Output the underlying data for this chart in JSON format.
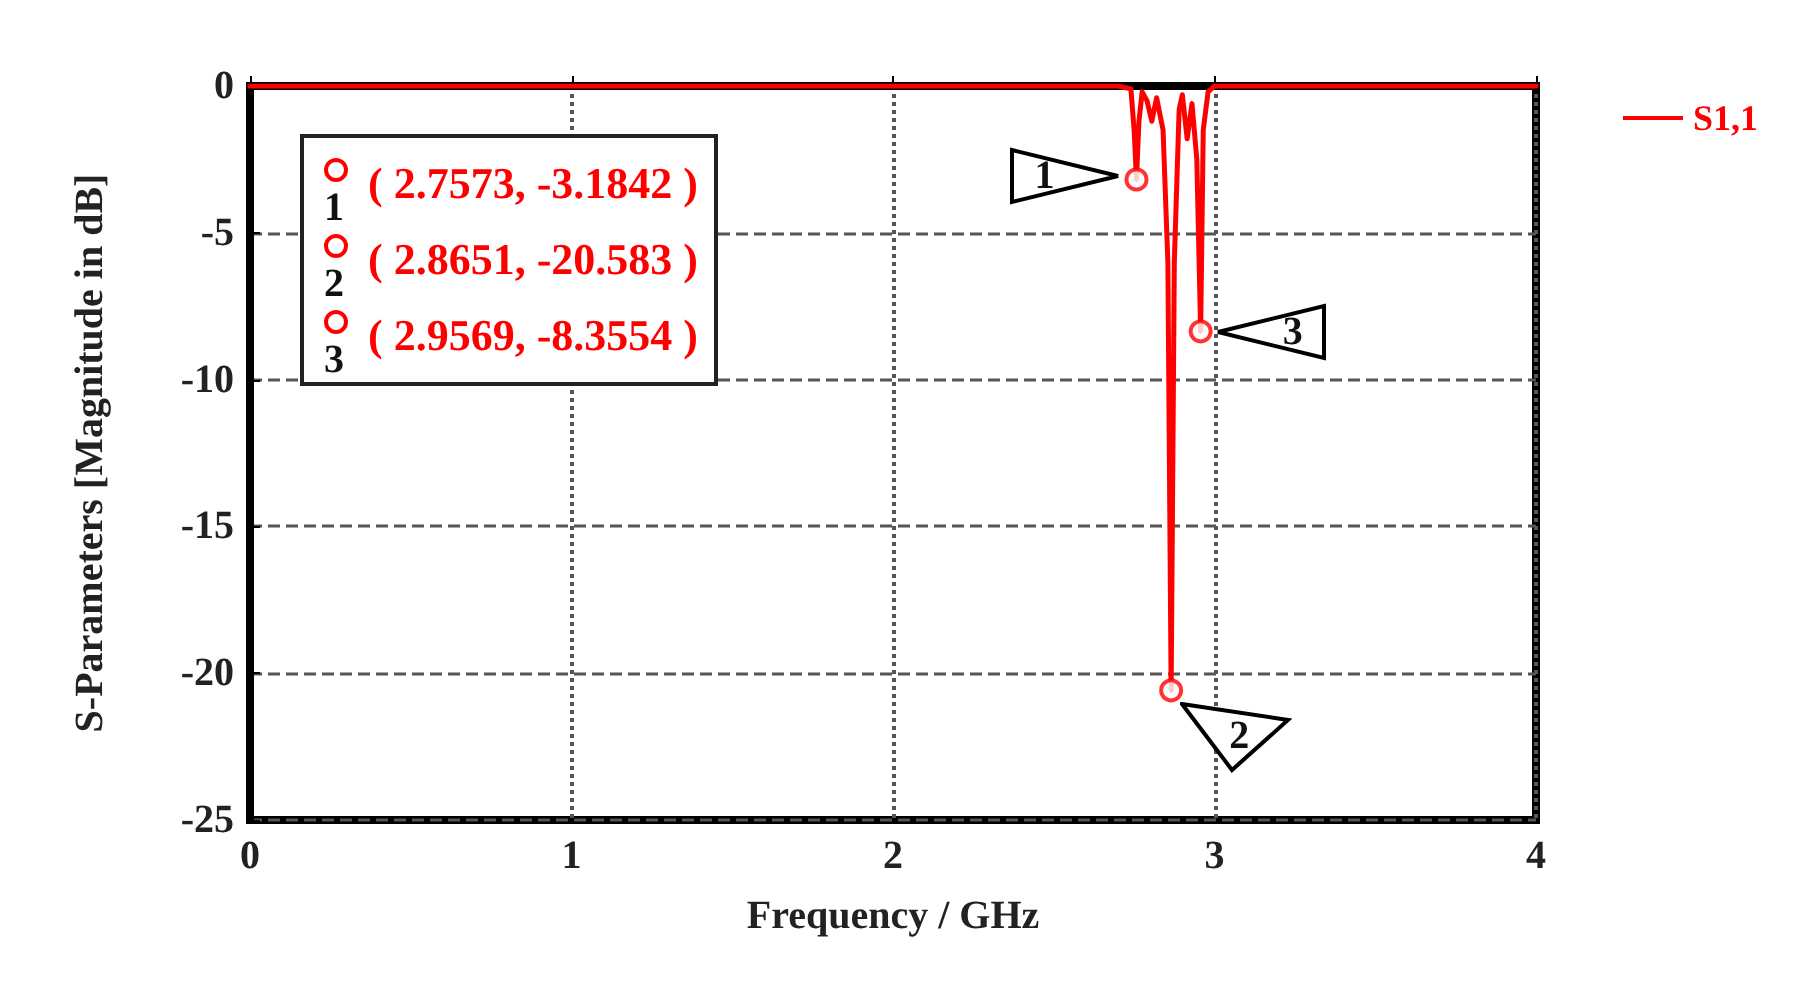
{
  "chart_data": {
    "type": "line",
    "xlabel": "Frequency / GHz",
    "ylabel": "S-Parameters [Magnitude in dB]",
    "xlim": [
      0,
      4
    ],
    "xticks": [
      0,
      1,
      2,
      3,
      4
    ],
    "ylim": [
      -25,
      0
    ],
    "yticks": [
      -25,
      -20,
      -15,
      -10,
      -5,
      0
    ],
    "grid": true,
    "legend": "right",
    "marker": "none",
    "series": [
      {
        "name": "S1,1",
        "color": "#ff0000",
        "x": [
          0,
          2.7,
          2.74,
          2.75,
          2.7573,
          2.765,
          2.775,
          2.79,
          2.805,
          2.82,
          2.84,
          2.855,
          2.8651,
          2.875,
          2.89,
          2.9,
          2.915,
          2.93,
          2.945,
          2.9569,
          2.965,
          2.98,
          3.0,
          4
        ],
        "values": [
          0,
          0,
          -0.1,
          -1.5,
          -3.1842,
          -1.2,
          -0.2,
          -0.5,
          -1.2,
          -0.4,
          -1.5,
          -6,
          -20.583,
          -6,
          -0.8,
          -0.3,
          -1.8,
          -0.6,
          -2.5,
          -8.3554,
          -1.5,
          -0.2,
          0,
          0
        ]
      },
      {
        "type": "scatter",
        "color": "#ff0000",
        "marker": "circle",
        "x": [
          2.7573,
          2.8651,
          2.9569
        ],
        "values": [
          -3.1842,
          -20.583,
          -8.3554
        ]
      }
    ],
    "annotations": [
      {
        "text": "1",
        "x": 2.7573,
        "y": -3.1842
      },
      {
        "text": "2",
        "x": 2.8651,
        "y": -20.583
      },
      {
        "text": "3",
        "x": 2.9569,
        "y": -8.3554
      },
      "1 ( 2.7573, -3.1842 )",
      "2 ( 2.8651, -20.583 )",
      "3 ( 2.9569, -8.3554 )"
    ]
  }
}
